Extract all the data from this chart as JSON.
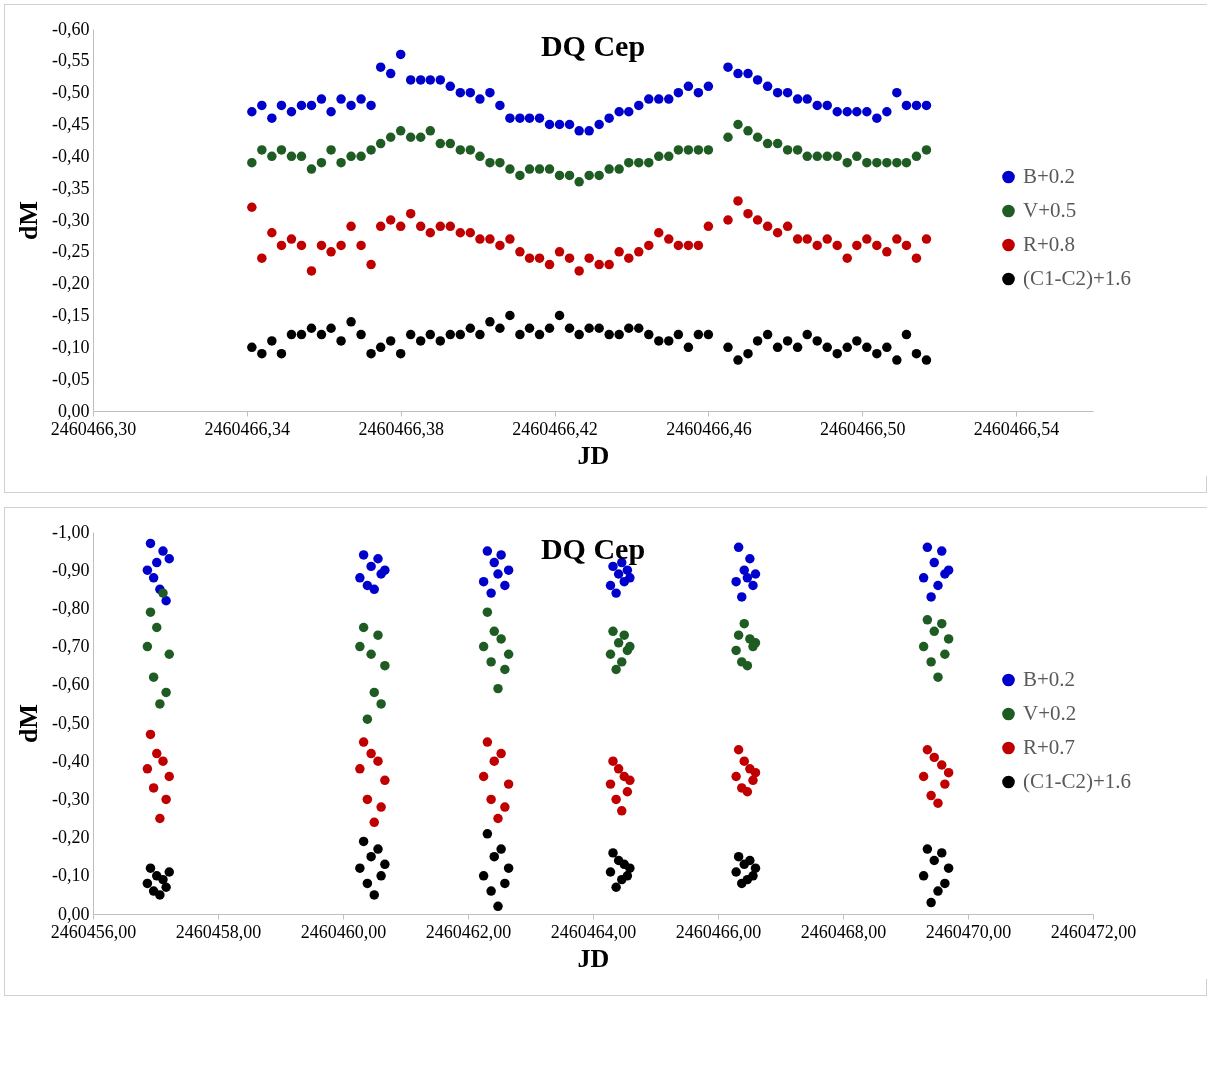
{
  "chart_data": [
    {
      "type": "scatter",
      "title": "DQ Cep",
      "xlabel": "JD",
      "ylabel": "dM",
      "marker": "circle",
      "legend": "right",
      "grid": false,
      "xlim": [
        2460466.3,
        2460466.56
      ],
      "xticks": [
        {
          "value": 2460466.3,
          "label": "2460466,30"
        },
        {
          "value": 2460466.34,
          "label": "2460466,34"
        },
        {
          "value": 2460466.38,
          "label": "2460466,38"
        },
        {
          "value": 2460466.42,
          "label": "2460466,42"
        },
        {
          "value": 2460466.46,
          "label": "2460466,46"
        },
        {
          "value": 2460466.5,
          "label": "2460466,50"
        },
        {
          "value": 2460466.54,
          "label": "2460466,54"
        }
      ],
      "ylim": [
        0,
        -0.6
      ],
      "yticks": [
        {
          "value": -0.6,
          "label": "-0,60"
        },
        {
          "value": -0.55,
          "label": "-0,55"
        },
        {
          "value": -0.5,
          "label": "-0,50"
        },
        {
          "value": -0.45,
          "label": "-0,45"
        },
        {
          "value": -0.4,
          "label": "-0,40"
        },
        {
          "value": -0.35,
          "label": "-0,35"
        },
        {
          "value": -0.3,
          "label": "-0,30"
        },
        {
          "value": -0.25,
          "label": "-0,25"
        },
        {
          "value": -0.2,
          "label": "-0,20"
        },
        {
          "value": -0.15,
          "label": "-0,15"
        },
        {
          "value": -0.1,
          "label": "-0,10"
        },
        {
          "value": -0.05,
          "label": "-0,05"
        },
        {
          "value": 0,
          "label": "0,00"
        }
      ],
      "x": [
        2460466.3413,
        2460466.3439,
        2460466.3465,
        2460466.349,
        2460466.3516,
        2460466.3542,
        2460466.3568,
        2460466.3594,
        2460466.3619,
        2460466.3645,
        2460466.3671,
        2460466.3697,
        2460466.3723,
        2460466.3748,
        2460466.3774,
        2460466.38,
        2460466.3826,
        2460466.3852,
        2460466.3877,
        2460466.3903,
        2460466.3929,
        2460466.3955,
        2460466.3981,
        2460466.4006,
        2460466.4032,
        2460466.4058,
        2460466.4084,
        2460466.411,
        2460466.4135,
        2460466.4161,
        2460466.4187,
        2460466.4213,
        2460466.4239,
        2460466.4264,
        2460466.429,
        2460466.4316,
        2460466.4342,
        2460466.4368,
        2460466.4393,
        2460466.4419,
        2460466.4445,
        2460466.4471,
        2460466.4497,
        2460466.4522,
        2460466.4548,
        2460466.4574,
        2460466.46,
        2460466.4651,
        2460466.4677,
        2460466.4703,
        2460466.4728,
        2460466.4754,
        2460466.478,
        2460466.4806,
        2460466.4832,
        2460466.4857,
        2460466.4883,
        2460466.4909,
        2460466.4935,
        2460466.4961,
        2460466.4986,
        2460466.5012,
        2460466.5038,
        2460466.5064,
        2460466.509,
        2460466.5115,
        2460466.5141,
        2460466.5167
      ],
      "series": [
        {
          "name": "B+0.2",
          "color": "#0000cc",
          "values": [
            -0.47,
            -0.48,
            -0.46,
            -0.48,
            -0.47,
            -0.48,
            -0.48,
            -0.49,
            -0.47,
            -0.49,
            -0.48,
            -0.49,
            -0.48,
            -0.54,
            -0.53,
            -0.56,
            -0.52,
            -0.52,
            -0.52,
            -0.52,
            -0.51,
            -0.5,
            -0.5,
            -0.49,
            -0.5,
            -0.48,
            -0.46,
            -0.46,
            -0.46,
            -0.46,
            -0.45,
            -0.45,
            -0.45,
            -0.44,
            -0.44,
            -0.45,
            -0.46,
            -0.47,
            -0.47,
            -0.48,
            -0.49,
            -0.49,
            -0.49,
            -0.5,
            -0.51,
            -0.5,
            -0.51,
            -0.54,
            -0.53,
            -0.53,
            -0.52,
            -0.51,
            -0.5,
            -0.5,
            -0.49,
            -0.49,
            -0.48,
            -0.48,
            -0.47,
            -0.47,
            -0.47,
            -0.47,
            -0.46,
            -0.47,
            -0.5,
            -0.48,
            -0.48,
            -0.48
          ]
        },
        {
          "name": "V+0.5",
          "color": "#1e5c23",
          "values": [
            -0.39,
            -0.41,
            -0.4,
            -0.41,
            -0.4,
            -0.4,
            -0.38,
            -0.39,
            -0.41,
            -0.39,
            -0.4,
            -0.4,
            -0.41,
            -0.42,
            -0.43,
            -0.44,
            -0.43,
            -0.43,
            -0.44,
            -0.42,
            -0.42,
            -0.41,
            -0.41,
            -0.4,
            -0.39,
            -0.39,
            -0.38,
            -0.37,
            -0.38,
            -0.38,
            -0.38,
            -0.37,
            -0.37,
            -0.36,
            -0.37,
            -0.37,
            -0.38,
            -0.38,
            -0.39,
            -0.39,
            -0.39,
            -0.4,
            -0.4,
            -0.41,
            -0.41,
            -0.41,
            -0.41,
            -0.43,
            -0.45,
            -0.44,
            -0.43,
            -0.42,
            -0.42,
            -0.41,
            -0.41,
            -0.4,
            -0.4,
            -0.4,
            -0.4,
            -0.39,
            -0.4,
            -0.39,
            -0.39,
            -0.39,
            -0.39,
            -0.39,
            -0.4,
            -0.41
          ]
        },
        {
          "name": "R+0.8",
          "color": "#c00000",
          "values": [
            -0.32,
            -0.24,
            -0.28,
            -0.26,
            -0.27,
            -0.26,
            -0.22,
            -0.26,
            -0.25,
            -0.26,
            -0.29,
            -0.26,
            -0.23,
            -0.29,
            -0.3,
            -0.29,
            -0.31,
            -0.29,
            -0.28,
            -0.29,
            -0.29,
            -0.28,
            -0.28,
            -0.27,
            -0.27,
            -0.26,
            -0.27,
            -0.25,
            -0.24,
            -0.24,
            -0.23,
            -0.25,
            -0.24,
            -0.22,
            -0.24,
            -0.23,
            -0.23,
            -0.25,
            -0.24,
            -0.25,
            -0.26,
            -0.28,
            -0.27,
            -0.26,
            -0.26,
            -0.26,
            -0.29,
            -0.3,
            -0.33,
            -0.31,
            -0.3,
            -0.29,
            -0.28,
            -0.29,
            -0.27,
            -0.27,
            -0.26,
            -0.27,
            -0.26,
            -0.24,
            -0.26,
            -0.27,
            -0.26,
            -0.25,
            -0.27,
            -0.26,
            -0.24,
            -0.27
          ]
        },
        {
          "name": "(C1-C2)+1.6",
          "color": "#000000",
          "values": [
            -0.1,
            -0.09,
            -0.11,
            -0.09,
            -0.12,
            -0.12,
            -0.13,
            -0.12,
            -0.13,
            -0.11,
            -0.14,
            -0.12,
            -0.09,
            -0.1,
            -0.11,
            -0.09,
            -0.12,
            -0.11,
            -0.12,
            -0.11,
            -0.12,
            -0.12,
            -0.13,
            -0.12,
            -0.14,
            -0.13,
            -0.15,
            -0.12,
            -0.13,
            -0.12,
            -0.13,
            -0.15,
            -0.13,
            -0.12,
            -0.13,
            -0.13,
            -0.12,
            -0.12,
            -0.13,
            -0.13,
            -0.12,
            -0.11,
            -0.11,
            -0.12,
            -0.1,
            -0.12,
            -0.12,
            -0.1,
            -0.08,
            -0.09,
            -0.11,
            -0.12,
            -0.1,
            -0.11,
            -0.1,
            -0.12,
            -0.11,
            -0.1,
            -0.09,
            -0.1,
            -0.11,
            -0.1,
            -0.09,
            -0.1,
            -0.08,
            -0.12,
            -0.09,
            -0.08
          ]
        }
      ]
    },
    {
      "type": "scatter",
      "title": "DQ Cep",
      "xlabel": "JD",
      "ylabel": "dM",
      "marker": "circle",
      "legend": "right",
      "grid": false,
      "xlim": [
        2460456,
        2460472
      ],
      "xticks": [
        {
          "value": 2460456,
          "label": "2460456,00"
        },
        {
          "value": 2460458,
          "label": "2460458,00"
        },
        {
          "value": 2460460,
          "label": "2460460,00"
        },
        {
          "value": 2460462,
          "label": "2460462,00"
        },
        {
          "value": 2460464,
          "label": "2460464,00"
        },
        {
          "value": 2460466,
          "label": "2460466,00"
        },
        {
          "value": 2460468,
          "label": "2460468,00"
        },
        {
          "value": 2460470,
          "label": "2460470,00"
        },
        {
          "value": 2460472,
          "label": "2460472,00"
        }
      ],
      "ylim": [
        0,
        -1
      ],
      "yticks": [
        {
          "value": -1,
          "label": "-1,00"
        },
        {
          "value": -0.9,
          "label": "-0,90"
        },
        {
          "value": -0.8,
          "label": "-0,80"
        },
        {
          "value": -0.7,
          "label": "-0,70"
        },
        {
          "value": -0.6,
          "label": "-0,60"
        },
        {
          "value": -0.5,
          "label": "-0,50"
        },
        {
          "value": -0.4,
          "label": "-0,40"
        },
        {
          "value": -0.3,
          "label": "-0,30"
        },
        {
          "value": -0.2,
          "label": "-0,20"
        },
        {
          "value": -0.1,
          "label": "-0,10"
        },
        {
          "value": 0,
          "label": "0,00"
        }
      ],
      "x": [
        2460456.87,
        2460456.92,
        2460456.97,
        2460457.02,
        2460457.07,
        2460457.12,
        2460457.17,
        2460457.22,
        2460460.27,
        2460460.33,
        2460460.39,
        2460460.45,
        2460460.5,
        2460460.56,
        2460460.61,
        2460460.67,
        2460462.25,
        2460462.31,
        2460462.37,
        2460462.42,
        2460462.48,
        2460462.53,
        2460462.59,
        2460462.65,
        2460464.28,
        2460464.32,
        2460464.37,
        2460464.41,
        2460464.46,
        2460464.5,
        2460464.55,
        2460464.59,
        2460466.29,
        2460466.33,
        2460466.38,
        2460466.42,
        2460466.47,
        2460466.51,
        2460466.56,
        2460466.6,
        2460469.29,
        2460469.35,
        2460469.41,
        2460469.46,
        2460469.52,
        2460469.58,
        2460469.63,
        2460469.69
      ],
      "series": [
        {
          "name": "B+0.2",
          "color": "#0000cc",
          "values": [
            -0.9,
            -0.97,
            -0.88,
            -0.92,
            -0.85,
            -0.95,
            -0.82,
            -0.93,
            -0.88,
            -0.94,
            -0.86,
            -0.91,
            -0.85,
            -0.93,
            -0.89,
            -0.9,
            -0.87,
            -0.95,
            -0.84,
            -0.92,
            -0.89,
            -0.94,
            -0.86,
            -0.9,
            -0.86,
            -0.91,
            -0.84,
            -0.89,
            -0.92,
            -0.87,
            -0.9,
            -0.88,
            -0.87,
            -0.96,
            -0.83,
            -0.9,
            -0.88,
            -0.93,
            -0.86,
            -0.89,
            -0.88,
            -0.96,
            -0.83,
            -0.92,
            -0.86,
            -0.95,
            -0.89,
            -0.9
          ]
        },
        {
          "name": "V+0.2",
          "color": "#1e5c23",
          "values": [
            -0.7,
            -0.79,
            -0.62,
            -0.75,
            -0.55,
            -0.84,
            -0.58,
            -0.68,
            -0.7,
            -0.75,
            -0.51,
            -0.68,
            -0.58,
            -0.73,
            -0.55,
            -0.65,
            -0.7,
            -0.79,
            -0.66,
            -0.74,
            -0.59,
            -0.72,
            -0.64,
            -0.68,
            -0.68,
            -0.74,
            -0.64,
            -0.71,
            -0.66,
            -0.73,
            -0.69,
            -0.7,
            -0.69,
            -0.73,
            -0.66,
            -0.76,
            -0.65,
            -0.72,
            -0.7,
            -0.71,
            -0.7,
            -0.77,
            -0.66,
            -0.74,
            -0.62,
            -0.76,
            -0.68,
            -0.72
          ]
        },
        {
          "name": "R+0.7",
          "color": "#c00000",
          "values": [
            -0.38,
            -0.47,
            -0.33,
            -0.42,
            -0.25,
            -0.4,
            -0.3,
            -0.36,
            -0.38,
            -0.45,
            -0.3,
            -0.42,
            -0.24,
            -0.4,
            -0.28,
            -0.35,
            -0.36,
            -0.45,
            -0.3,
            -0.4,
            -0.25,
            -0.42,
            -0.28,
            -0.34,
            -0.34,
            -0.4,
            -0.3,
            -0.38,
            -0.27,
            -0.36,
            -0.32,
            -0.35,
            -0.36,
            -0.43,
            -0.33,
            -0.4,
            -0.32,
            -0.38,
            -0.35,
            -0.37,
            -0.36,
            -0.43,
            -0.31,
            -0.41,
            -0.29,
            -0.39,
            -0.34,
            -0.37
          ]
        },
        {
          "name": "(C1-C2)+1.6",
          "color": "#000000",
          "values": [
            -0.08,
            -0.12,
            -0.06,
            -0.1,
            -0.05,
            -0.09,
            -0.07,
            -0.11,
            -0.12,
            -0.19,
            -0.08,
            -0.15,
            -0.05,
            -0.17,
            -0.1,
            -0.13,
            -0.1,
            -0.21,
            -0.06,
            -0.15,
            -0.02,
            -0.17,
            -0.08,
            -0.12,
            -0.11,
            -0.16,
            -0.07,
            -0.14,
            -0.09,
            -0.13,
            -0.1,
            -0.12,
            -0.11,
            -0.15,
            -0.08,
            -0.13,
            -0.09,
            -0.14,
            -0.1,
            -0.12,
            -0.1,
            -0.17,
            -0.03,
            -0.14,
            -0.06,
            -0.16,
            -0.08,
            -0.12
          ]
        }
      ]
    }
  ]
}
